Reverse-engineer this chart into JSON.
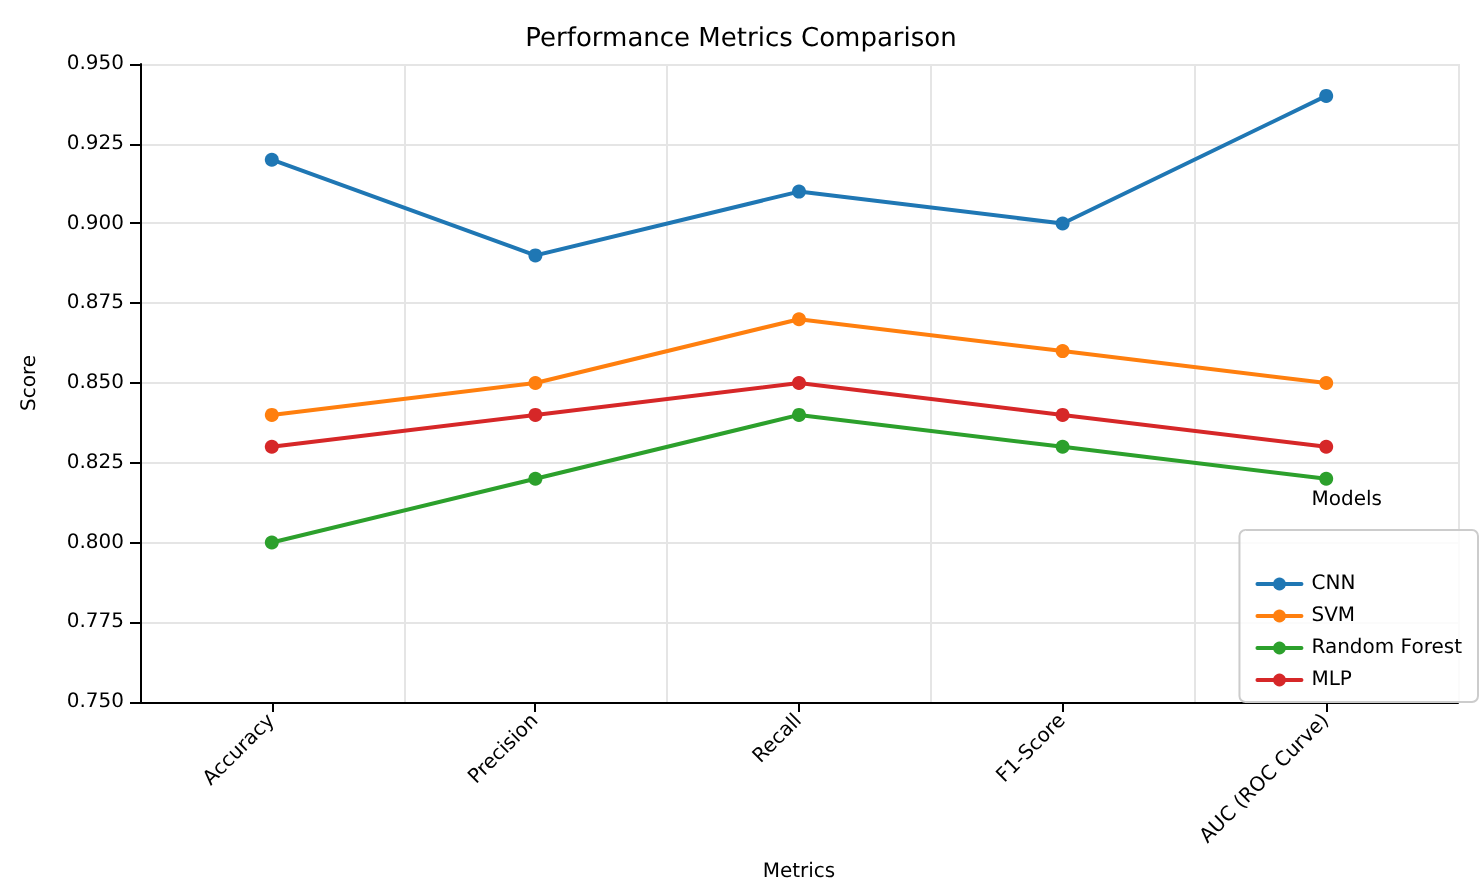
{
  "chart_data": {
    "type": "line",
    "title": "Performance Metrics Comparison",
    "xlabel": "Metrics",
    "ylabel": "Score",
    "legend_title": "Models",
    "categories": [
      "Accuracy",
      "Precision",
      "Recall",
      "F1-Score",
      "AUC (ROC Curve)"
    ],
    "series": [
      {
        "name": "CNN",
        "color": "#1f77b4",
        "values": [
          0.92,
          0.89,
          0.91,
          0.9,
          0.94
        ]
      },
      {
        "name": "SVM",
        "color": "#ff7f0e",
        "values": [
          0.84,
          0.85,
          0.87,
          0.86,
          0.85
        ]
      },
      {
        "name": "Random Forest",
        "color": "#2ca02c",
        "values": [
          0.8,
          0.82,
          0.84,
          0.83,
          0.82
        ]
      },
      {
        "name": "MLP",
        "color": "#d62728",
        "values": [
          0.83,
          0.84,
          0.85,
          0.84,
          0.83
        ]
      }
    ],
    "ylim": [
      0.75,
      0.95
    ],
    "yticks": [
      {
        "value": 0.75,
        "label": "0.750"
      },
      {
        "value": 0.775,
        "label": "0.775"
      },
      {
        "value": 0.8,
        "label": "0.800"
      },
      {
        "value": 0.825,
        "label": "0.825"
      },
      {
        "value": 0.85,
        "label": "0.850"
      },
      {
        "value": 0.875,
        "label": "0.875"
      },
      {
        "value": 0.9,
        "label": "0.900"
      },
      {
        "value": 0.925,
        "label": "0.925"
      },
      {
        "value": 0.95,
        "label": "0.950"
      }
    ],
    "grid": true,
    "legend": "bottom right",
    "marker": "circle",
    "line_style": "solid"
  }
}
